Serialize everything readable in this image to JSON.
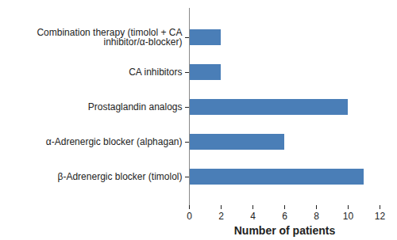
{
  "chart_data": {
    "type": "bar",
    "orientation": "horizontal",
    "categories": [
      "Combination therapy (timolol + CA inhibitor/α-blocker)",
      "CA inhibitors",
      "Prostaglandin analogs",
      "α-Adrenergic blocker (alphagan)",
      "β-Adrenergic blocker (timolol)"
    ],
    "values": [
      2,
      2,
      10,
      6,
      11
    ],
    "color": "#4a7eb7",
    "x_label": "Number of patients",
    "xlim": [
      0,
      12
    ],
    "xticks": [
      0,
      2,
      4,
      6,
      8,
      10,
      12
    ],
    "grid": false
  }
}
